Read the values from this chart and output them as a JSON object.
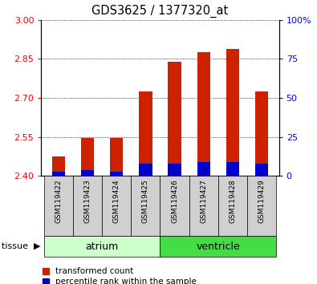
{
  "title": "GDS3625 / 1377320_at",
  "samples": [
    "GSM119422",
    "GSM119423",
    "GSM119424",
    "GSM119425",
    "GSM119426",
    "GSM119427",
    "GSM119428",
    "GSM119429"
  ],
  "transformed_count": [
    2.475,
    2.545,
    2.545,
    2.725,
    2.838,
    2.875,
    2.888,
    2.725
  ],
  "percentile_rank": [
    3,
    4,
    3,
    8,
    8,
    9,
    9,
    8
  ],
  "ymin": 2.4,
  "ymax": 3.0,
  "yticks": [
    2.4,
    2.55,
    2.7,
    2.85,
    3.0
  ],
  "right_yticks": [
    0,
    25,
    50,
    75,
    100
  ],
  "bar_color": "#cc2200",
  "percentile_color": "#0000cc",
  "tissue_groups": [
    {
      "label": "atrium",
      "start": 0,
      "end": 3,
      "color": "#ccffcc"
    },
    {
      "label": "ventricle",
      "start": 4,
      "end": 7,
      "color": "#44dd44"
    }
  ],
  "tissue_label": "tissue",
  "bar_width": 0.45,
  "legend_red": "transformed count",
  "legend_blue": "percentile rank within the sample",
  "background_color": "#ffffff",
  "sample_box_color": "#d0d0d0",
  "grid_color": "#000000"
}
